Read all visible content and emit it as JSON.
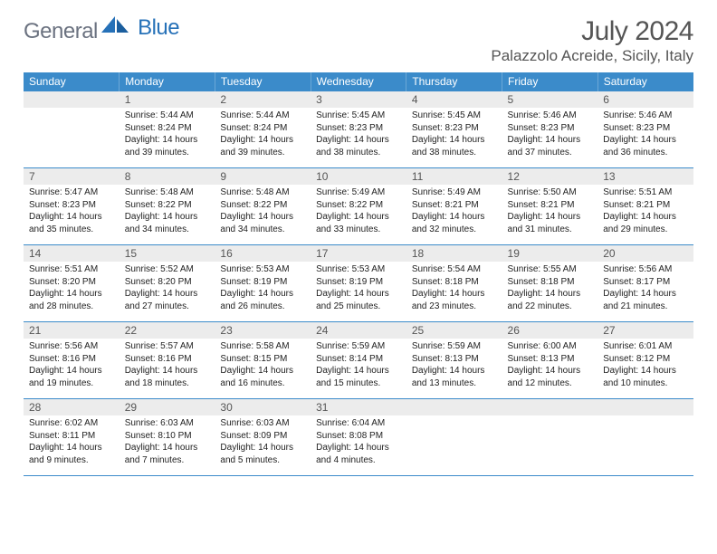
{
  "brand": {
    "name_a": "General",
    "name_b": "Blue",
    "color_a": "#6b7280",
    "color_b": "#2671b8",
    "sail_color": "#2671b8"
  },
  "title": "July 2024",
  "subtitle": "Palazzolo Acreide, Sicily, Italy",
  "styles": {
    "header_bg": "#3b8bca",
    "header_fg": "#ffffff",
    "daynum_bg": "#ececec",
    "daynum_fg": "#555555",
    "border_color": "#3b8bca",
    "body_text": "#222222",
    "daynum_fontsize": 12,
    "cell_fontsize": 10,
    "title_fontsize": 30,
    "subtitle_fontsize": 17
  },
  "weekdays": [
    "Sunday",
    "Monday",
    "Tuesday",
    "Wednesday",
    "Thursday",
    "Friday",
    "Saturday"
  ],
  "weeks": [
    [
      {
        "n": "",
        "sr": "",
        "ss": "",
        "dl": ""
      },
      {
        "n": "1",
        "sr": "Sunrise: 5:44 AM",
        "ss": "Sunset: 8:24 PM",
        "dl": "Daylight: 14 hours and 39 minutes."
      },
      {
        "n": "2",
        "sr": "Sunrise: 5:44 AM",
        "ss": "Sunset: 8:24 PM",
        "dl": "Daylight: 14 hours and 39 minutes."
      },
      {
        "n": "3",
        "sr": "Sunrise: 5:45 AM",
        "ss": "Sunset: 8:23 PM",
        "dl": "Daylight: 14 hours and 38 minutes."
      },
      {
        "n": "4",
        "sr": "Sunrise: 5:45 AM",
        "ss": "Sunset: 8:23 PM",
        "dl": "Daylight: 14 hours and 38 minutes."
      },
      {
        "n": "5",
        "sr": "Sunrise: 5:46 AM",
        "ss": "Sunset: 8:23 PM",
        "dl": "Daylight: 14 hours and 37 minutes."
      },
      {
        "n": "6",
        "sr": "Sunrise: 5:46 AM",
        "ss": "Sunset: 8:23 PM",
        "dl": "Daylight: 14 hours and 36 minutes."
      }
    ],
    [
      {
        "n": "7",
        "sr": "Sunrise: 5:47 AM",
        "ss": "Sunset: 8:23 PM",
        "dl": "Daylight: 14 hours and 35 minutes."
      },
      {
        "n": "8",
        "sr": "Sunrise: 5:48 AM",
        "ss": "Sunset: 8:22 PM",
        "dl": "Daylight: 14 hours and 34 minutes."
      },
      {
        "n": "9",
        "sr": "Sunrise: 5:48 AM",
        "ss": "Sunset: 8:22 PM",
        "dl": "Daylight: 14 hours and 34 minutes."
      },
      {
        "n": "10",
        "sr": "Sunrise: 5:49 AM",
        "ss": "Sunset: 8:22 PM",
        "dl": "Daylight: 14 hours and 33 minutes."
      },
      {
        "n": "11",
        "sr": "Sunrise: 5:49 AM",
        "ss": "Sunset: 8:21 PM",
        "dl": "Daylight: 14 hours and 32 minutes."
      },
      {
        "n": "12",
        "sr": "Sunrise: 5:50 AM",
        "ss": "Sunset: 8:21 PM",
        "dl": "Daylight: 14 hours and 31 minutes."
      },
      {
        "n": "13",
        "sr": "Sunrise: 5:51 AM",
        "ss": "Sunset: 8:21 PM",
        "dl": "Daylight: 14 hours and 29 minutes."
      }
    ],
    [
      {
        "n": "14",
        "sr": "Sunrise: 5:51 AM",
        "ss": "Sunset: 8:20 PM",
        "dl": "Daylight: 14 hours and 28 minutes."
      },
      {
        "n": "15",
        "sr": "Sunrise: 5:52 AM",
        "ss": "Sunset: 8:20 PM",
        "dl": "Daylight: 14 hours and 27 minutes."
      },
      {
        "n": "16",
        "sr": "Sunrise: 5:53 AM",
        "ss": "Sunset: 8:19 PM",
        "dl": "Daylight: 14 hours and 26 minutes."
      },
      {
        "n": "17",
        "sr": "Sunrise: 5:53 AM",
        "ss": "Sunset: 8:19 PM",
        "dl": "Daylight: 14 hours and 25 minutes."
      },
      {
        "n": "18",
        "sr": "Sunrise: 5:54 AM",
        "ss": "Sunset: 8:18 PM",
        "dl": "Daylight: 14 hours and 23 minutes."
      },
      {
        "n": "19",
        "sr": "Sunrise: 5:55 AM",
        "ss": "Sunset: 8:18 PM",
        "dl": "Daylight: 14 hours and 22 minutes."
      },
      {
        "n": "20",
        "sr": "Sunrise: 5:56 AM",
        "ss": "Sunset: 8:17 PM",
        "dl": "Daylight: 14 hours and 21 minutes."
      }
    ],
    [
      {
        "n": "21",
        "sr": "Sunrise: 5:56 AM",
        "ss": "Sunset: 8:16 PM",
        "dl": "Daylight: 14 hours and 19 minutes."
      },
      {
        "n": "22",
        "sr": "Sunrise: 5:57 AM",
        "ss": "Sunset: 8:16 PM",
        "dl": "Daylight: 14 hours and 18 minutes."
      },
      {
        "n": "23",
        "sr": "Sunrise: 5:58 AM",
        "ss": "Sunset: 8:15 PM",
        "dl": "Daylight: 14 hours and 16 minutes."
      },
      {
        "n": "24",
        "sr": "Sunrise: 5:59 AM",
        "ss": "Sunset: 8:14 PM",
        "dl": "Daylight: 14 hours and 15 minutes."
      },
      {
        "n": "25",
        "sr": "Sunrise: 5:59 AM",
        "ss": "Sunset: 8:13 PM",
        "dl": "Daylight: 14 hours and 13 minutes."
      },
      {
        "n": "26",
        "sr": "Sunrise: 6:00 AM",
        "ss": "Sunset: 8:13 PM",
        "dl": "Daylight: 14 hours and 12 minutes."
      },
      {
        "n": "27",
        "sr": "Sunrise: 6:01 AM",
        "ss": "Sunset: 8:12 PM",
        "dl": "Daylight: 14 hours and 10 minutes."
      }
    ],
    [
      {
        "n": "28",
        "sr": "Sunrise: 6:02 AM",
        "ss": "Sunset: 8:11 PM",
        "dl": "Daylight: 14 hours and 9 minutes."
      },
      {
        "n": "29",
        "sr": "Sunrise: 6:03 AM",
        "ss": "Sunset: 8:10 PM",
        "dl": "Daylight: 14 hours and 7 minutes."
      },
      {
        "n": "30",
        "sr": "Sunrise: 6:03 AM",
        "ss": "Sunset: 8:09 PM",
        "dl": "Daylight: 14 hours and 5 minutes."
      },
      {
        "n": "31",
        "sr": "Sunrise: 6:04 AM",
        "ss": "Sunset: 8:08 PM",
        "dl": "Daylight: 14 hours and 4 minutes."
      },
      {
        "n": "",
        "sr": "",
        "ss": "",
        "dl": ""
      },
      {
        "n": "",
        "sr": "",
        "ss": "",
        "dl": ""
      },
      {
        "n": "",
        "sr": "",
        "ss": "",
        "dl": ""
      }
    ]
  ]
}
